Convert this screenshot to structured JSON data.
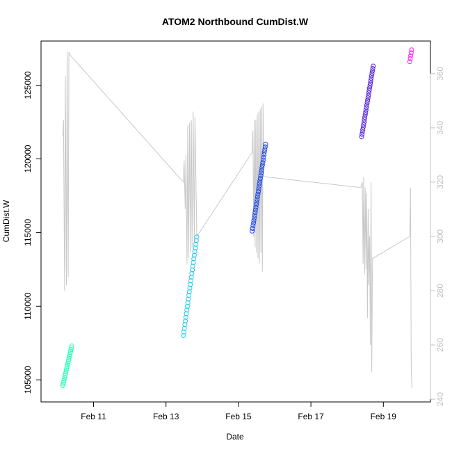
{
  "chart_data": {
    "type": "scatter",
    "title": "ATOM2 Northbound CumDist.W",
    "xlabel": "Date",
    "ylabel": "CumDist.W",
    "x_ticks": [
      "Feb 11",
      "Feb 13",
      "Feb 15",
      "Feb 17",
      "Feb 19"
    ],
    "x_tick_days": [
      11,
      13,
      15,
      17,
      19
    ],
    "xlim_days": [
      9.55,
      20.3
    ],
    "ylim": [
      103500,
      128000
    ],
    "y_ticks": [
      105000,
      110000,
      115000,
      120000,
      125000
    ],
    "y_right_ticks": [
      240,
      260,
      280,
      300,
      320,
      340,
      360
    ],
    "y_right_lim": [
      239,
      372
    ],
    "right_axis_color": "#c0c0c0",
    "grid": false,
    "series": [
      {
        "color": "#33ffbb",
        "x": [
          10.15,
          10.4
        ],
        "y": [
          104600,
          107300
        ],
        "n_points": 24
      },
      {
        "color": "#22c8f0",
        "x": [
          13.48,
          13.85
        ],
        "y": [
          108000,
          114700
        ],
        "n_points": 28
      },
      {
        "color": "#1a44e6",
        "x": [
          15.38,
          15.75
        ],
        "y": [
          115100,
          121000
        ],
        "n_points": 34
      },
      {
        "color": "#5522dd",
        "x": [
          18.4,
          18.72
        ],
        "y": [
          121500,
          126300
        ],
        "n_points": 30
      },
      {
        "color": "#ee22ee",
        "x": [
          19.73,
          19.78
        ],
        "y": [
          126600,
          127400
        ],
        "n_points": 5
      }
    ],
    "line_series": {
      "color": "#c8c8c8",
      "axis": "right",
      "x": [
        10.15,
        10.17,
        10.2,
        10.22,
        10.25,
        10.27,
        10.3,
        10.32,
        10.34,
        13.48,
        13.5,
        13.53,
        13.55,
        13.58,
        13.6,
        13.62,
        13.65,
        13.67,
        13.7,
        13.72,
        13.75,
        13.78,
        13.8,
        13.85,
        15.38,
        15.4,
        15.42,
        15.44,
        15.46,
        15.48,
        15.5,
        15.52,
        15.54,
        15.56,
        15.58,
        15.6,
        15.62,
        15.64,
        15.66,
        15.68,
        15.7,
        18.38,
        18.42,
        18.44,
        18.46,
        18.48,
        18.5,
        18.52,
        18.54,
        18.56,
        18.58,
        18.6,
        18.62,
        18.64,
        18.66,
        18.68,
        18.7,
        18.72,
        19.73,
        19.75,
        19.77,
        19.79
      ],
      "y": [
        337,
        343,
        280,
        359,
        282,
        368,
        285,
        368,
        367,
        320,
        328,
        310,
        330,
        290,
        341,
        292,
        342,
        294,
        343,
        296,
        346,
        298,
        344,
        300,
        331,
        339,
        300,
        343,
        296,
        343,
        294,
        345,
        292,
        346,
        290,
        347,
        294,
        348,
        287,
        349,
        322,
        318,
        320,
        290,
        322,
        286,
        318,
        288,
        316,
        270,
        310,
        282,
        300,
        260,
        320,
        250,
        292,
        292,
        300,
        318,
        250,
        244
      ]
    }
  }
}
